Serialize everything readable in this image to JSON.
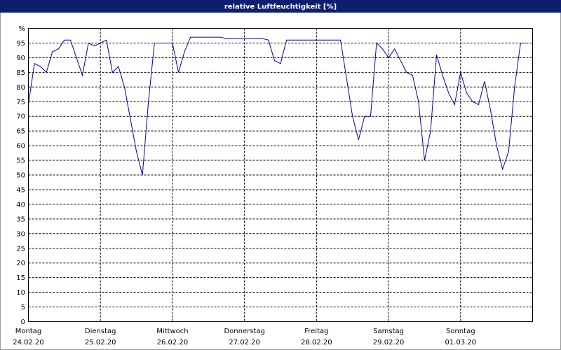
{
  "chart_data": {
    "type": "line",
    "title": "relative Luftfeuchtigkeit [%]",
    "x": [
      0,
      2,
      4,
      6,
      8,
      10,
      12,
      14,
      16,
      18,
      20,
      22,
      24,
      26,
      28,
      30,
      32,
      34,
      36,
      38,
      40,
      42,
      44,
      46,
      48,
      50,
      52,
      54,
      56,
      58,
      60,
      62,
      64,
      66,
      68,
      70,
      72,
      74,
      76,
      78,
      80,
      82,
      84,
      86,
      88,
      90,
      92,
      94,
      96,
      98,
      100,
      102,
      104,
      106,
      108,
      110,
      112,
      114,
      116,
      118,
      120,
      122,
      124,
      126,
      128,
      130,
      132,
      134,
      136,
      138,
      140,
      142,
      144,
      146,
      148,
      150,
      152,
      154,
      156,
      158,
      160,
      162,
      164,
      166
    ],
    "series": [
      {
        "name": "relative Luftfeuchtigkeit",
        "color": "#0000a8",
        "values": [
          74,
          88,
          87,
          85,
          92,
          93,
          96,
          96,
          90,
          84,
          95,
          94,
          95,
          96,
          85,
          87,
          80,
          69,
          58,
          50,
          75,
          95,
          95,
          95,
          95,
          85,
          92,
          97,
          97,
          97,
          97,
          97,
          97,
          96.5,
          96.5,
          96.5,
          96.5,
          96.5,
          96.5,
          96.5,
          96,
          89,
          88,
          96,
          96,
          96,
          96,
          96,
          96,
          96,
          96,
          96,
          96,
          83,
          70,
          62,
          70,
          70,
          95,
          93,
          90,
          93,
          89,
          85,
          84,
          75,
          55,
          65,
          91,
          84,
          78,
          74,
          85,
          78,
          75,
          74,
          82,
          72,
          60,
          52,
          58,
          80,
          95,
          95
        ]
      }
    ],
    "xlim": [
      0,
      168
    ],
    "xticks": [
      {
        "value": 0,
        "label": "Montag"
      },
      {
        "value": 24,
        "label": "Dienstag"
      },
      {
        "value": 48,
        "label": "Mittwoch"
      },
      {
        "value": 72,
        "label": "Donnerstag"
      },
      {
        "value": 96,
        "label": "Freitag"
      },
      {
        "value": 120,
        "label": "Samstag"
      },
      {
        "value": 144,
        "label": "Sonntag"
      }
    ],
    "xtick_dates": [
      "24.02.20",
      "25.02.20",
      "26.02.20",
      "27.02.20",
      "28.02.20",
      "29.02.20",
      "01.03.20"
    ],
    "ylim": [
      0,
      100
    ],
    "yticks": [
      0,
      5,
      10,
      15,
      20,
      25,
      30,
      35,
      40,
      45,
      50,
      55,
      60,
      65,
      70,
      75,
      80,
      85,
      90,
      95,
      {
        "value": 100,
        "label": "%"
      }
    ],
    "grid": true
  }
}
